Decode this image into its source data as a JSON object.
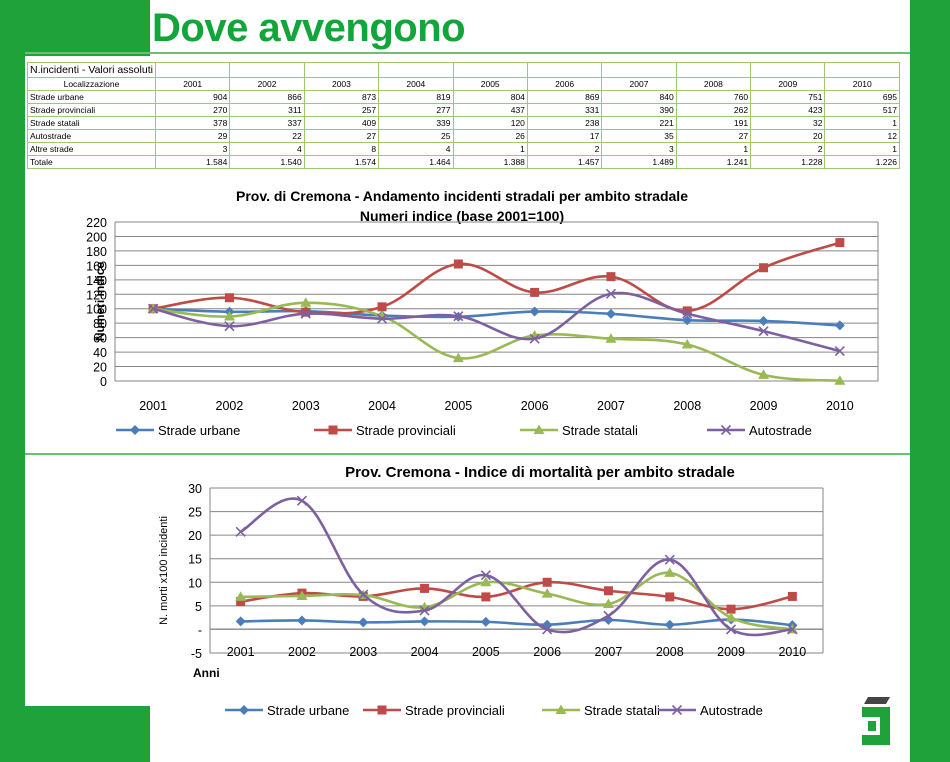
{
  "page": {
    "title": "Dove avvengono"
  },
  "table": {
    "caption": "N.incidenti - Valori assoluti",
    "header_label": "Localizzazione",
    "years": [
      "2001",
      "2002",
      "2003",
      "2004",
      "2005",
      "2006",
      "2007",
      "2008",
      "2009",
      "2010"
    ],
    "rows": [
      {
        "label": "Strade urbane",
        "values": [
          "904",
          "866",
          "873",
          "819",
          "804",
          "869",
          "840",
          "760",
          "751",
          "695"
        ]
      },
      {
        "label": "Strade provinciali",
        "values": [
          "270",
          "311",
          "257",
          "277",
          "437",
          "331",
          "390",
          "262",
          "423",
          "517"
        ]
      },
      {
        "label": "Strade statali",
        "values": [
          "378",
          "337",
          "409",
          "339",
          "120",
          "238",
          "221",
          "191",
          "32",
          "1"
        ]
      },
      {
        "label": "Autostrade",
        "values": [
          "29",
          "22",
          "27",
          "25",
          "26",
          "17",
          "35",
          "27",
          "20",
          "12"
        ]
      },
      {
        "label": "Altre strade",
        "values": [
          "3",
          "4",
          "8",
          "4",
          "1",
          "2",
          "3",
          "1",
          "2",
          "1"
        ]
      },
      {
        "label": "Totale",
        "values": [
          "1.584",
          "1.540",
          "1.574",
          "1.464",
          "1.388",
          "1.457",
          "1.489",
          "1.241",
          "1.228",
          "1.226"
        ]
      }
    ]
  },
  "chart_data": [
    {
      "type": "line",
      "title": "Prov. di Cremona - Andamento incidenti stradali per ambito stradale",
      "subtitle": "Numeri indice (base 2001=100)",
      "xlabel": "",
      "ylabel": "Numeri indice",
      "ylim": [
        0,
        220
      ],
      "yticks": [
        0,
        20,
        40,
        60,
        80,
        100,
        120,
        140,
        160,
        180,
        200,
        220
      ],
      "categories": [
        "2001",
        "2002",
        "2003",
        "2004",
        "2005",
        "2006",
        "2007",
        "2008",
        "2009",
        "2010"
      ],
      "series": [
        {
          "name": "Strade urbane",
          "color": "#4a7ebb",
          "marker": "diamond",
          "values": [
            100,
            95.8,
            96.6,
            90.6,
            88.9,
            96.1,
            92.9,
            84.1,
            83.1,
            76.9
          ]
        },
        {
          "name": "Strade provinciali",
          "color": "#be4b48",
          "marker": "square",
          "values": [
            100,
            115.2,
            95.2,
            102.6,
            161.9,
            122.6,
            144.4,
            97.0,
            156.7,
            191.5
          ]
        },
        {
          "name": "Strade statali",
          "color": "#98b954",
          "marker": "triangle",
          "values": [
            100,
            89.2,
            108.2,
            89.7,
            31.7,
            63.0,
            58.5,
            50.5,
            8.5,
            0.3
          ]
        },
        {
          "name": "Autostrade",
          "color": "#7d60a0",
          "marker": "x",
          "values": [
            100,
            75.9,
            93.1,
            86.2,
            89.7,
            58.6,
            120.7,
            93.1,
            69.0,
            41.4
          ]
        }
      ]
    },
    {
      "type": "line",
      "title": "Prov. Cremona - Indice di mortalità per ambito stradale",
      "xlabel": "Anni",
      "ylabel": "N. morti  x100 incidenti",
      "ylim": [
        -5,
        30
      ],
      "yticks": [
        -5,
        0,
        5,
        10,
        15,
        20,
        25,
        30
      ],
      "ytick_labels": [
        "-5",
        "-",
        "5",
        "10",
        "15",
        "20",
        "25",
        "30"
      ],
      "categories": [
        "2001",
        "2002",
        "2003",
        "2004",
        "2005",
        "2006",
        "2007",
        "2008",
        "2009",
        "2010"
      ],
      "series": [
        {
          "name": "Strade urbane",
          "color": "#4a7ebb",
          "marker": "diamond",
          "values": [
            1.7,
            1.9,
            1.5,
            1.7,
            1.6,
            1.0,
            2.0,
            1.0,
            2.1,
            0.9
          ]
        },
        {
          "name": "Strade provinciali",
          "color": "#be4b48",
          "marker": "square",
          "values": [
            5.9,
            7.7,
            7.0,
            8.7,
            6.9,
            10.0,
            8.2,
            6.9,
            4.3,
            7.0
          ]
        },
        {
          "name": "Strade statali",
          "color": "#98b954",
          "marker": "triangle",
          "values": [
            6.9,
            7.1,
            7.3,
            4.7,
            10.0,
            7.6,
            5.4,
            12.0,
            2.5,
            0
          ]
        },
        {
          "name": "Autostrade",
          "color": "#7d60a0",
          "marker": "x",
          "values": [
            20.7,
            27.3,
            7.4,
            4.0,
            11.5,
            0,
            2.9,
            14.8,
            0,
            0
          ]
        }
      ]
    }
  ]
}
